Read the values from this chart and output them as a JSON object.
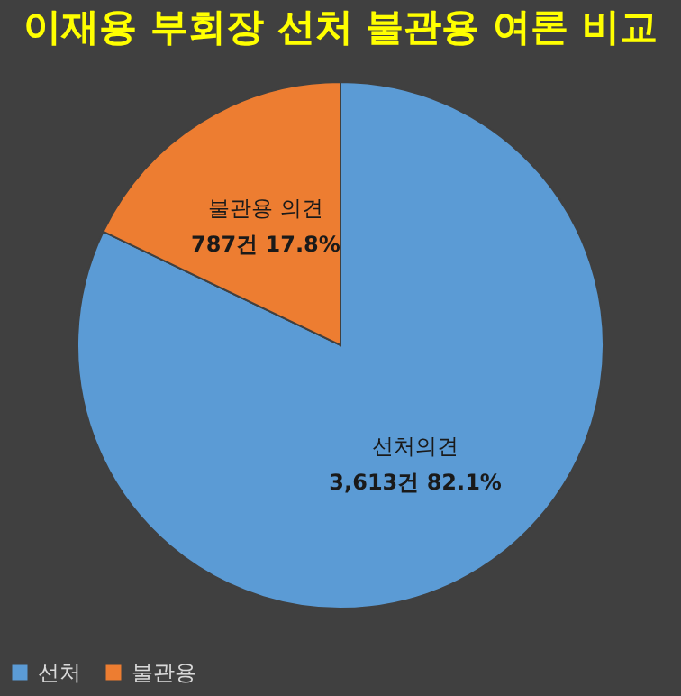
{
  "chart_data": {
    "type": "pie",
    "title": "이재용 부회장 선처 불관용 여론 비교",
    "categories": [
      "선처",
      "불관용"
    ],
    "values": [
      3613,
      787
    ],
    "colors": [
      "#5b9bd5",
      "#ed7d31"
    ],
    "value_labels": [
      "3,613건 82.1%",
      "787건 17.8%"
    ],
    "annotations": [
      "선처의견",
      "불관용 의견"
    ],
    "legend": "bottom"
  }
}
